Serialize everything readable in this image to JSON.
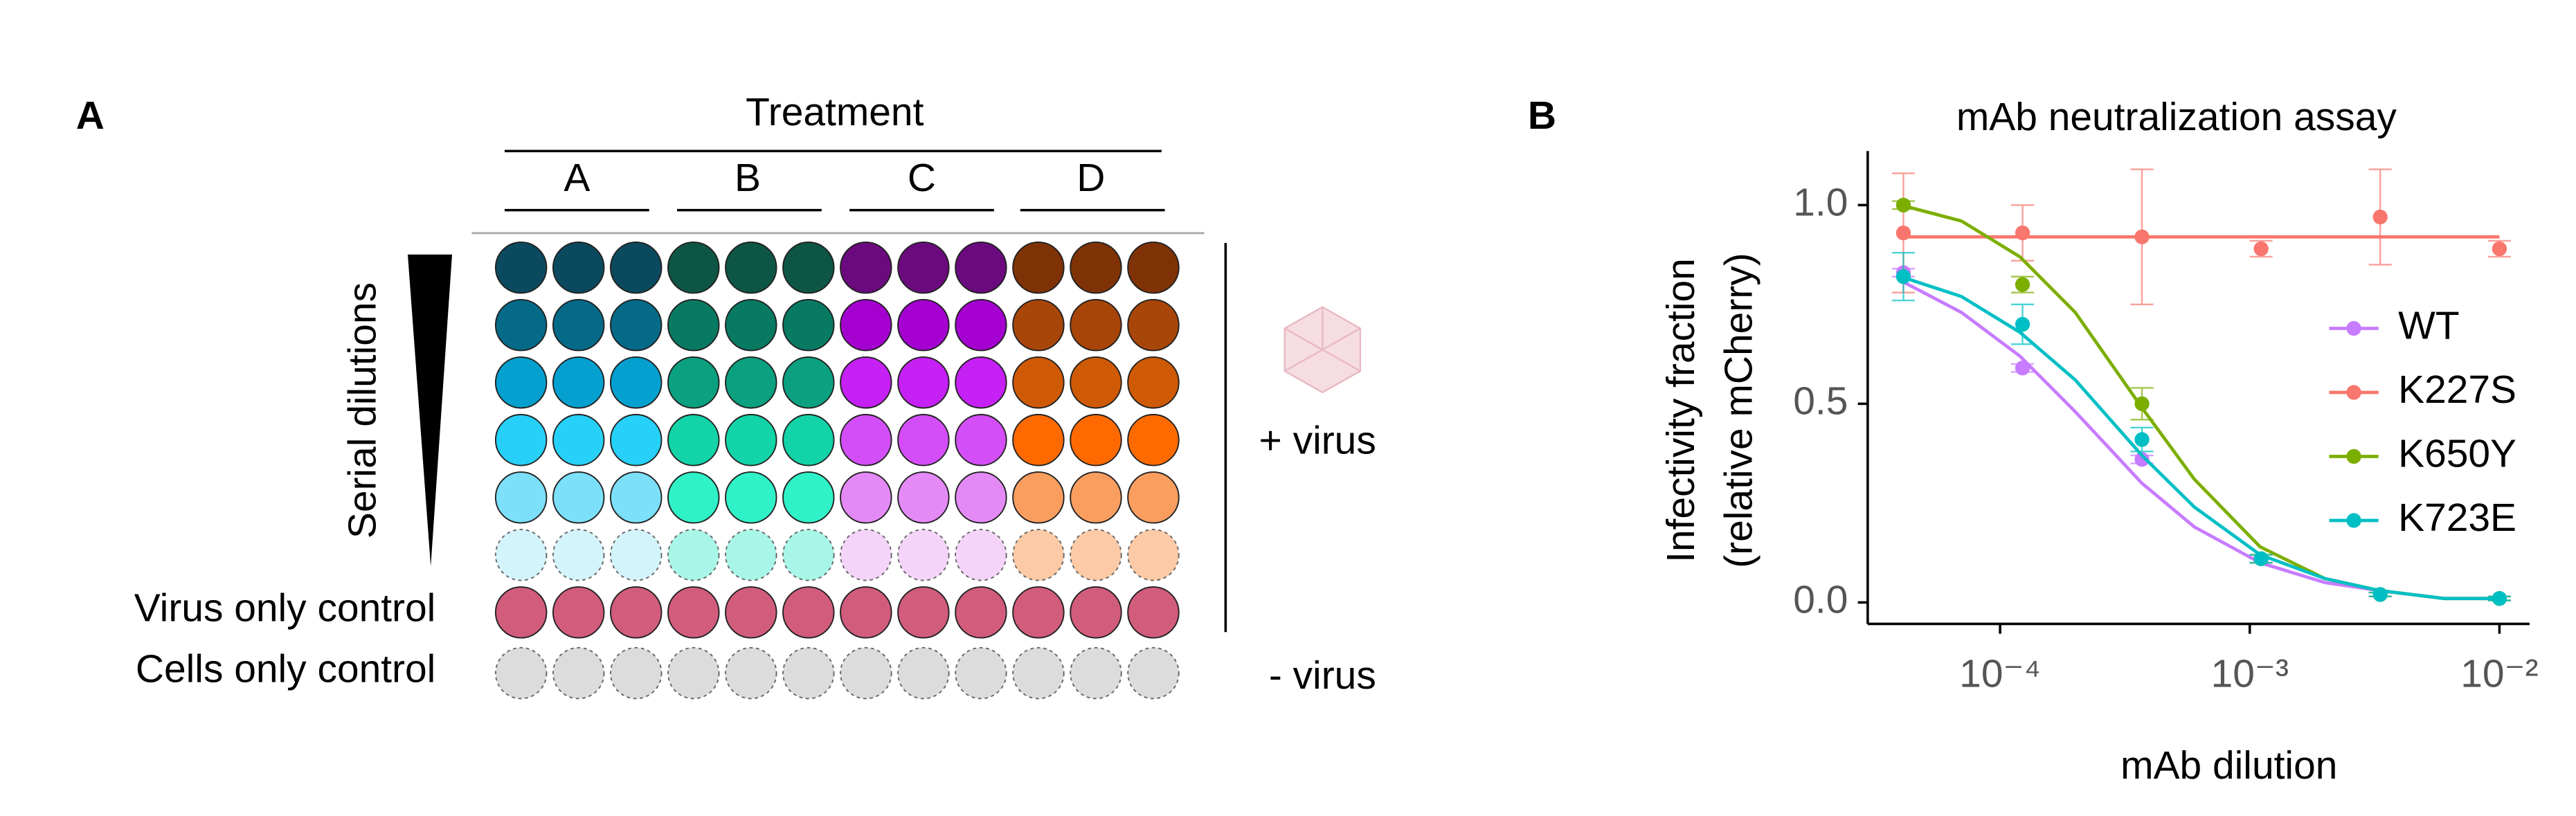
{
  "panel_a": {
    "label": "A",
    "treatment": "Treatment",
    "groups": [
      "A",
      "B",
      "C",
      "D"
    ],
    "serial_dilutions": "Serial dilutions",
    "row_labels": [
      "Virus only control",
      "Cells only control"
    ],
    "plus_virus": "+ virus",
    "minus_virus": "- virus",
    "well_colors": [
      [
        "#0b4a5e",
        "#0d5544",
        "#6a0a7e",
        "#7f3206"
      ],
      [
        "#046a88",
        "#087a62",
        "#a400d0",
        "#a84508"
      ],
      [
        "#04a0cf",
        "#0aa080",
        "#c520f4",
        "#cf5a06"
      ],
      [
        "#27d0f8",
        "#12d4a8",
        "#d44ef7",
        "#ff6a00"
      ],
      [
        "#7ce0fa",
        "#30f2c8",
        "#e48af7",
        "#fa9e60"
      ],
      [
        "#d4f4fc",
        "#a8f6e8",
        "#f5d4fa",
        "#fccaa6"
      ],
      [
        "#d25c7c",
        "#d25c7c",
        "#d25c7c",
        "#d25c7c"
      ],
      [
        "#dcdcdc",
        "#dcdcdc",
        "#dcdcdc",
        "#dcdcdc"
      ]
    ]
  },
  "chart_data": {
    "type": "scatter",
    "panel_label": "B",
    "title": "mAb neutralization assay",
    "x_label": "mAb dilution",
    "y_label": [
      "Infectivity fraction",
      "(relative mCherry)"
    ],
    "xscale": "log",
    "xlim": [
      2.95e-05,
      0.0132
    ],
    "xticks": [
      {
        "value": 0.0001,
        "label": "10⁻⁴"
      },
      {
        "value": 0.001,
        "label": "10⁻³"
      },
      {
        "value": 0.01,
        "label": "10⁻²"
      }
    ],
    "ylim": [
      -0.054,
      1.136
    ],
    "yticks": [
      {
        "value": 0,
        "label": "0.0"
      },
      {
        "value": 0.5,
        "label": "0.5"
      },
      {
        "value": 1,
        "label": "1.0"
      }
    ],
    "grid": false,
    "legend": "right",
    "x": [
      4.1e-05,
      0.000123,
      0.00037,
      0.00111,
      0.00333,
      0.01
    ],
    "fit_x": [
      4e-05,
      7e-05,
      0.00012,
      0.0002,
      0.00037,
      0.0006,
      0.0011,
      0.002,
      0.0033,
      0.006,
      0.01
    ],
    "series": [
      {
        "name": "WT",
        "color": "#c77cff",
        "values": [
          0.83,
          0.59,
          0.36,
          0.11,
          0.02,
          0.01
        ],
        "errors": [
          0.01,
          0.01,
          0.01,
          0.01,
          0.005,
          0.005
        ],
        "fit": [
          0.81,
          0.73,
          0.62,
          0.48,
          0.3,
          0.19,
          0.1,
          0.05,
          0.03,
          0.01,
          0.01
        ]
      },
      {
        "name": "K227S",
        "color": "#f8766d",
        "values": [
          0.93,
          0.93,
          0.92,
          0.89,
          0.97,
          0.89
        ],
        "errors": [
          0.15,
          0.07,
          0.17,
          0.02,
          0.12,
          0.02
        ],
        "fit": [
          0.92,
          0.92,
          0.92,
          0.92,
          0.92,
          0.92,
          0.92,
          0.92,
          0.92,
          0.92,
          0.92
        ]
      },
      {
        "name": "K650Y",
        "color": "#7cae00",
        "values": [
          1.0,
          0.8,
          0.5,
          0.11,
          0.02,
          0.01
        ],
        "errors": [
          0.01,
          0.02,
          0.04,
          0.01,
          0.005,
          0.005
        ],
        "fit": [
          1.0,
          0.96,
          0.87,
          0.73,
          0.49,
          0.31,
          0.14,
          0.06,
          0.03,
          0.01,
          0.01
        ]
      },
      {
        "name": "K723E",
        "color": "#00bfc4",
        "values": [
          0.82,
          0.7,
          0.41,
          0.11,
          0.02,
          0.01
        ],
        "errors": [
          0.06,
          0.05,
          0.03,
          0.01,
          0.005,
          0.005
        ],
        "fit": [
          0.82,
          0.77,
          0.68,
          0.56,
          0.37,
          0.24,
          0.12,
          0.06,
          0.03,
          0.01,
          0.01
        ]
      }
    ]
  }
}
